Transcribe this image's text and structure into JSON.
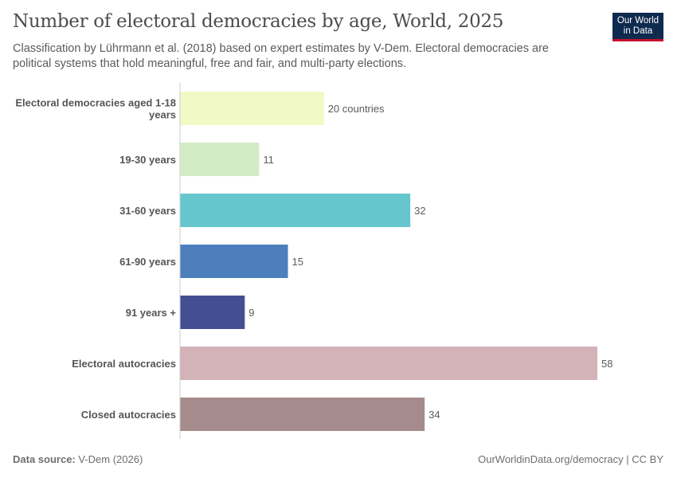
{
  "header": {
    "title": "Number of electoral democracies by age, World, 2025",
    "subtitle": "Classification by Lührmann et al. (2018) based on expert estimates by V-Dem. Electoral democracies are political systems that hold meaningful, free and fair, and multi-party elections.",
    "logo_line1": "Our World",
    "logo_line2": "in Data"
  },
  "footer": {
    "source_label": "Data source:",
    "source": "V-Dem (2026)",
    "url": "OurWorldinData.org/democracy | CC BY"
  },
  "chart_data": {
    "type": "bar",
    "orientation": "horizontal",
    "title": "Number of electoral democracies by age, World, 2025",
    "categories": [
      [
        "Electoral democracies aged 1-18",
        "years"
      ],
      [
        "19-30 years"
      ],
      [
        "31-60 years"
      ],
      [
        "61-90 years"
      ],
      [
        "91 years +"
      ],
      [
        "Electoral autocracies"
      ],
      [
        "Closed autocracies"
      ]
    ],
    "values": [
      20,
      11,
      32,
      15,
      9,
      58,
      34
    ],
    "value_labels": [
      "20 countries",
      "11",
      "32",
      "15",
      "9",
      "58",
      "34"
    ],
    "colors": [
      "#f1f9c4",
      "#d4ecc6",
      "#65c6ce",
      "#4d7fbd",
      "#434f91",
      "#d3b3b8",
      "#a58b8c"
    ],
    "xlim": [
      0,
      58
    ]
  }
}
